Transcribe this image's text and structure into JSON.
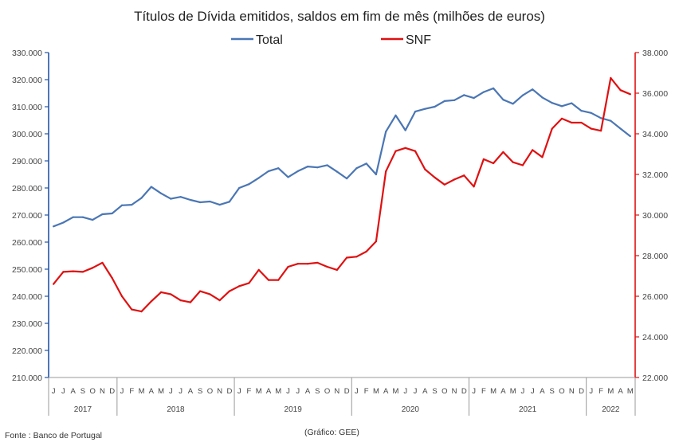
{
  "chart_data": {
    "type": "line",
    "title": "Títulos de Dívida emitidos, saldos em fim de mês  (milhões de euros)",
    "source_note": "Fonte : Banco de Portugal",
    "credit_note": "(Gráfico: GEE)",
    "legend_position": "top",
    "grid": false,
    "y_left": {
      "ylim": [
        210000,
        330000
      ],
      "ticks": [
        "210.000",
        "220.000",
        "230.000",
        "240.000",
        "250.000",
        "260.000",
        "270.000",
        "280.000",
        "290.000",
        "300.000",
        "310.000",
        "320.000",
        "330.000"
      ],
      "color": "#2255aa"
    },
    "y_right": {
      "ylim": [
        22000,
        38000
      ],
      "ticks": [
        "22.000",
        "24.000",
        "26.000",
        "28.000",
        "30.000",
        "32.000",
        "34.000",
        "36.000",
        "38.000"
      ],
      "color": "#e01010"
    },
    "month_labels": [
      "J",
      "J",
      "A",
      "S",
      "O",
      "N",
      "D",
      "J",
      "F",
      "M",
      "A",
      "M",
      "J",
      "J",
      "A",
      "S",
      "O",
      "N",
      "D",
      "J",
      "F",
      "M",
      "A",
      "M",
      "J",
      "J",
      "A",
      "S",
      "O",
      "N",
      "D",
      "J",
      "F",
      "M",
      "A",
      "M",
      "J",
      "J",
      "A",
      "S",
      "O",
      "N",
      "D",
      "J",
      "F",
      "M",
      "A",
      "M",
      "J",
      "J",
      "A",
      "S",
      "O",
      "N",
      "D",
      "J",
      "F",
      "M",
      "A",
      "M"
    ],
    "years": [
      {
        "label": "2017",
        "start": 0,
        "end": 6
      },
      {
        "label": "2018",
        "start": 7,
        "end": 18
      },
      {
        "label": "2019",
        "start": 19,
        "end": 30
      },
      {
        "label": "2020",
        "start": 31,
        "end": 42
      },
      {
        "label": "2021",
        "start": 43,
        "end": 54
      },
      {
        "label": "2022",
        "start": 55,
        "end": 59
      }
    ],
    "series": [
      {
        "name": "Total",
        "axis": "left",
        "color": "#4a76b4",
        "values": [
          265800,
          267200,
          269200,
          269200,
          268200,
          270300,
          270600,
          273600,
          273800,
          276300,
          280400,
          278000,
          276000,
          276700,
          275600,
          274700,
          275000,
          273800,
          274900,
          280000,
          281400,
          283700,
          286200,
          287300,
          284000,
          286200,
          287900,
          287600,
          288400,
          286000,
          283500,
          287300,
          289000,
          285000,
          300800,
          306800,
          301300,
          308200,
          309200,
          310000,
          312100,
          312400,
          314300,
          313200,
          315400,
          316800,
          312600,
          311100,
          314200,
          316400,
          313400,
          311400,
          310200,
          311300,
          308500,
          307700,
          305800,
          304800,
          301900,
          299100
        ]
      },
      {
        "name": "SNF",
        "axis": "right",
        "color": "#e01010",
        "values": [
          26600,
          27200,
          27230,
          27200,
          27400,
          27650,
          26900,
          26000,
          25350,
          25250,
          25750,
          26200,
          26100,
          25800,
          25700,
          26250,
          26100,
          25800,
          26250,
          26500,
          26650,
          27300,
          26800,
          26800,
          27450,
          27600,
          27600,
          27650,
          27450,
          27300,
          27900,
          27950,
          28200,
          28700,
          32150,
          33150,
          33300,
          33150,
          32250,
          31850,
          31500,
          31750,
          31950,
          31400,
          32750,
          32550,
          33100,
          32600,
          32450,
          33200,
          32850,
          34250,
          34750,
          34550,
          34550,
          34250,
          34150,
          36750,
          36150,
          35950
        ]
      }
    ]
  }
}
